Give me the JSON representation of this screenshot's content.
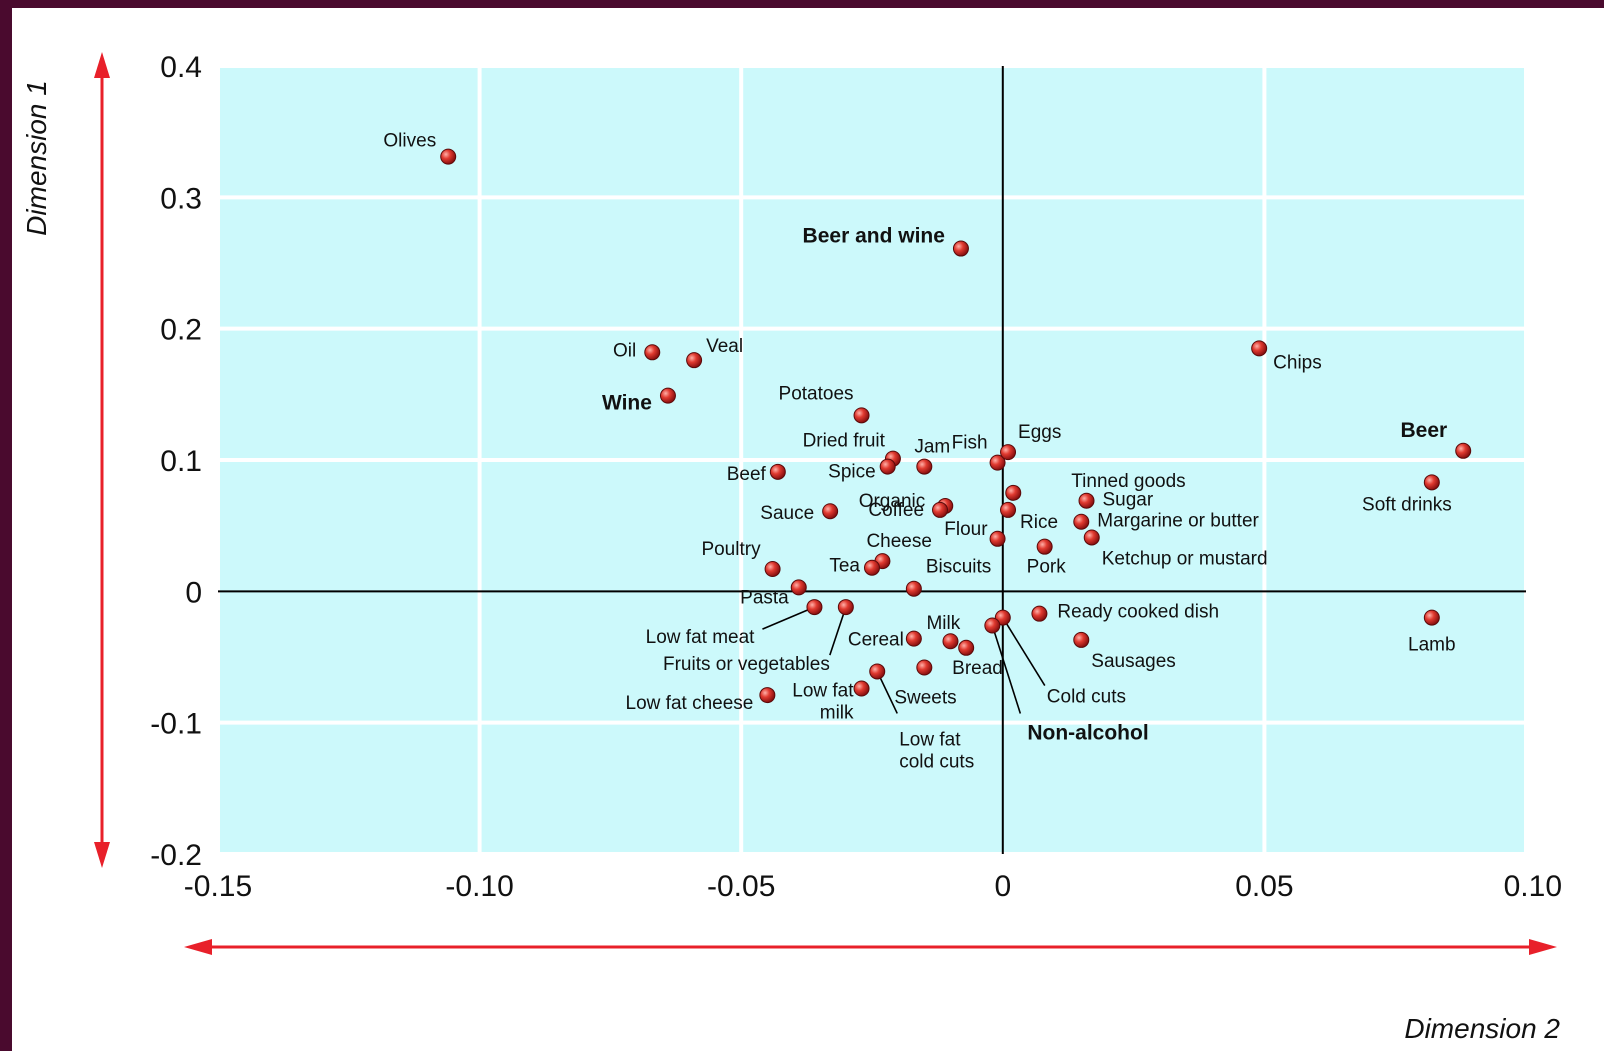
{
  "chart_data": {
    "type": "scatter",
    "title": "",
    "xlabel": "Dimension 2",
    "ylabel": "Dimension 1",
    "xlim": [
      -0.15,
      0.1
    ],
    "ylim": [
      -0.2,
      0.4
    ],
    "xticks": [
      -0.15,
      -0.1,
      -0.05,
      0,
      0.05,
      0.1
    ],
    "xtick_labels": [
      "-0.15",
      "-0.10",
      "-0.05",
      "0",
      "0.05",
      "0.10"
    ],
    "yticks": [
      -0.2,
      -0.1,
      0,
      0.1,
      0.2,
      0.3,
      0.4
    ],
    "ytick_labels": [
      "-0.2",
      "-0.1",
      "0",
      "0.1",
      "0.2",
      "0.3",
      "0.4"
    ],
    "grid": true,
    "colors": {
      "plot_bg": "#ccf9fb",
      "grid": "#ffffff",
      "point": "#d9322b",
      "arrow": "#e8202a",
      "frame": "#4a0a2e"
    },
    "points": [
      {
        "label": "Olives",
        "x": -0.106,
        "y": 0.331
      },
      {
        "label": "Beer and wine",
        "x": -0.008,
        "y": 0.261,
        "bold": true
      },
      {
        "label": "Oil",
        "x": -0.067,
        "y": 0.182
      },
      {
        "label": "Veal",
        "x": -0.059,
        "y": 0.176
      },
      {
        "label": "Wine",
        "x": -0.064,
        "y": 0.149,
        "bold": true
      },
      {
        "label": "Chips",
        "x": 0.049,
        "y": 0.185
      },
      {
        "label": "Potatoes",
        "x": -0.027,
        "y": 0.134
      },
      {
        "label": "Beer",
        "x": 0.088,
        "y": 0.107,
        "bold": true
      },
      {
        "label": "Soft drinks",
        "x": 0.082,
        "y": 0.083
      },
      {
        "label": "Dried fruit",
        "x": -0.021,
        "y": 0.101
      },
      {
        "label": "Jam",
        "x": -0.015,
        "y": 0.095
      },
      {
        "label": "Spice",
        "x": -0.022,
        "y": 0.095
      },
      {
        "label": "Beef",
        "x": -0.043,
        "y": 0.091
      },
      {
        "label": "Fish",
        "x": -0.001,
        "y": 0.098
      },
      {
        "label": "Eggs",
        "x": 0.001,
        "y": 0.106
      },
      {
        "label": "Tinned goods",
        "x": 0.002,
        "y": 0.075
      },
      {
        "label": "Organic",
        "x": -0.011,
        "y": 0.065
      },
      {
        "label": "Coffee",
        "x": -0.012,
        "y": 0.062
      },
      {
        "label": "Sauce",
        "x": -0.033,
        "y": 0.061
      },
      {
        "label": "Rice",
        "x": 0.001,
        "y": 0.062
      },
      {
        "label": "Sugar",
        "x": 0.016,
        "y": 0.069
      },
      {
        "label": "Margarine or butter",
        "x": 0.015,
        "y": 0.053
      },
      {
        "label": "Ketchup or mustard",
        "x": 0.017,
        "y": 0.041
      },
      {
        "label": "Flour",
        "x": -0.001,
        "y": 0.04
      },
      {
        "label": "Pork",
        "x": 0.008,
        "y": 0.034
      },
      {
        "label": "Cheese",
        "x": -0.023,
        "y": 0.023
      },
      {
        "label": "Tea",
        "x": -0.025,
        "y": 0.018
      },
      {
        "label": "Poultry",
        "x": -0.044,
        "y": 0.017
      },
      {
        "label": "Biscuits",
        "x": -0.017,
        "y": 0.002
      },
      {
        "label": "Pasta",
        "x": -0.039,
        "y": 0.003
      },
      {
        "label": "Low fat meat",
        "x": -0.036,
        "y": -0.012
      },
      {
        "label": "Fruits or vegetables",
        "x": -0.03,
        "y": -0.012
      },
      {
        "label": "Ready cooked dish",
        "x": 0.007,
        "y": -0.017
      },
      {
        "label": "Lamb",
        "x": 0.082,
        "y": -0.02
      },
      {
        "label": "Milk",
        "x": -0.01,
        "y": -0.038
      },
      {
        "label": "Cereal",
        "x": -0.017,
        "y": -0.036
      },
      {
        "label": "Bread",
        "x": -0.007,
        "y": -0.043
      },
      {
        "label": "Cold cuts",
        "x": 0.0,
        "y": -0.02
      },
      {
        "label": "Non-alcohol",
        "x": -0.002,
        "y": -0.026,
        "bold": true
      },
      {
        "label": "Sausages",
        "x": 0.015,
        "y": -0.037
      },
      {
        "label": "Sweets",
        "x": -0.015,
        "y": -0.058
      },
      {
        "label": "Low fat cheese",
        "x": -0.045,
        "y": -0.079
      },
      {
        "label": "Low fat milk",
        "x": -0.027,
        "y": -0.074
      },
      {
        "label": "Low fat cold cuts",
        "x": -0.024,
        "y": -0.061
      }
    ]
  }
}
